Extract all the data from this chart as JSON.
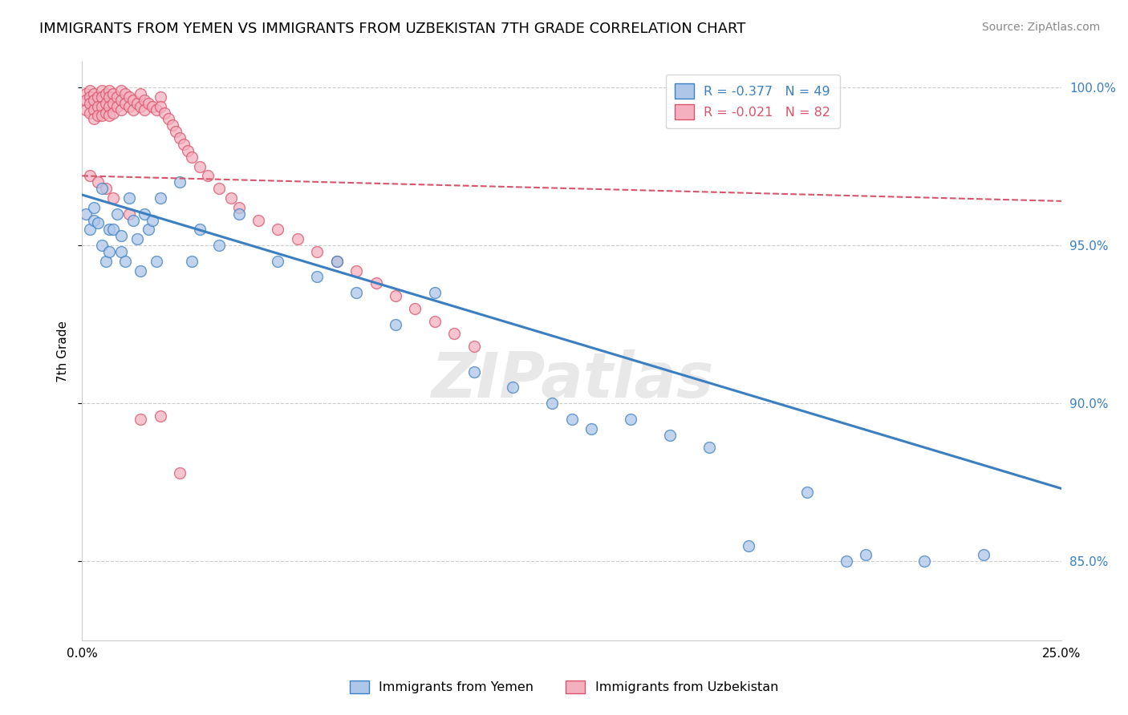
{
  "title": "IMMIGRANTS FROM YEMEN VS IMMIGRANTS FROM UZBEKISTAN 7TH GRADE CORRELATION CHART",
  "source": "Source: ZipAtlas.com",
  "ylabel": "7th Grade",
  "xlim": [
    0.0,
    0.25
  ],
  "ylim": [
    0.825,
    1.008
  ],
  "yticks": [
    0.85,
    0.9,
    0.95,
    1.0
  ],
  "ytick_labels": [
    "85.0%",
    "90.0%",
    "95.0%",
    "100.0%"
  ],
  "xticks": [
    0.0,
    0.05,
    0.1,
    0.15,
    0.2,
    0.25
  ],
  "xtick_labels": [
    "0.0%",
    "",
    "",
    "",
    "",
    "25.0%"
  ],
  "legend_labels": [
    "R = -0.377   N = 49",
    "R = -0.021   N = 82"
  ],
  "blue_scatter_x": [
    0.001,
    0.002,
    0.003,
    0.003,
    0.004,
    0.005,
    0.005,
    0.006,
    0.007,
    0.007,
    0.008,
    0.009,
    0.01,
    0.01,
    0.011,
    0.012,
    0.013,
    0.014,
    0.015,
    0.016,
    0.017,
    0.018,
    0.019,
    0.02,
    0.025,
    0.028,
    0.03,
    0.035,
    0.04,
    0.05,
    0.06,
    0.065,
    0.07,
    0.08,
    0.09,
    0.1,
    0.11,
    0.12,
    0.125,
    0.13,
    0.14,
    0.15,
    0.16,
    0.17,
    0.185,
    0.195,
    0.2,
    0.215,
    0.23
  ],
  "blue_scatter_y": [
    0.96,
    0.955,
    0.958,
    0.962,
    0.957,
    0.95,
    0.968,
    0.945,
    0.955,
    0.948,
    0.955,
    0.96,
    0.948,
    0.953,
    0.945,
    0.965,
    0.958,
    0.952,
    0.942,
    0.96,
    0.955,
    0.958,
    0.945,
    0.965,
    0.97,
    0.945,
    0.955,
    0.95,
    0.96,
    0.945,
    0.94,
    0.945,
    0.935,
    0.925,
    0.935,
    0.91,
    0.905,
    0.9,
    0.895,
    0.892,
    0.895,
    0.89,
    0.886,
    0.855,
    0.872,
    0.85,
    0.852,
    0.85,
    0.852
  ],
  "pink_scatter_x": [
    0.001,
    0.001,
    0.001,
    0.002,
    0.002,
    0.002,
    0.002,
    0.003,
    0.003,
    0.003,
    0.003,
    0.004,
    0.004,
    0.004,
    0.005,
    0.005,
    0.005,
    0.005,
    0.006,
    0.006,
    0.006,
    0.007,
    0.007,
    0.007,
    0.007,
    0.008,
    0.008,
    0.008,
    0.009,
    0.009,
    0.01,
    0.01,
    0.01,
    0.011,
    0.011,
    0.012,
    0.012,
    0.013,
    0.013,
    0.014,
    0.015,
    0.015,
    0.016,
    0.016,
    0.017,
    0.018,
    0.019,
    0.02,
    0.02,
    0.021,
    0.022,
    0.023,
    0.024,
    0.025,
    0.026,
    0.027,
    0.028,
    0.03,
    0.032,
    0.035,
    0.038,
    0.04,
    0.045,
    0.05,
    0.055,
    0.06,
    0.065,
    0.07,
    0.075,
    0.08,
    0.085,
    0.09,
    0.095,
    0.1,
    0.002,
    0.004,
    0.006,
    0.008,
    0.012,
    0.015,
    0.02,
    0.025
  ],
  "pink_scatter_y": [
    0.998,
    0.996,
    0.993,
    0.999,
    0.997,
    0.995,
    0.992,
    0.998,
    0.996,
    0.993,
    0.99,
    0.997,
    0.994,
    0.991,
    0.999,
    0.997,
    0.994,
    0.991,
    0.998,
    0.995,
    0.992,
    0.999,
    0.997,
    0.994,
    0.991,
    0.998,
    0.995,
    0.992,
    0.997,
    0.994,
    0.999,
    0.996,
    0.993,
    0.998,
    0.995,
    0.997,
    0.994,
    0.996,
    0.993,
    0.995,
    0.998,
    0.994,
    0.996,
    0.993,
    0.995,
    0.994,
    0.993,
    0.997,
    0.994,
    0.992,
    0.99,
    0.988,
    0.986,
    0.984,
    0.982,
    0.98,
    0.978,
    0.975,
    0.972,
    0.968,
    0.965,
    0.962,
    0.958,
    0.955,
    0.952,
    0.948,
    0.945,
    0.942,
    0.938,
    0.934,
    0.93,
    0.926,
    0.922,
    0.918,
    0.972,
    0.97,
    0.968,
    0.965,
    0.96,
    0.895,
    0.896,
    0.878
  ],
  "blue_line_x": [
    0.0,
    0.25
  ],
  "blue_line_y": [
    0.966,
    0.873
  ],
  "pink_line_x": [
    0.0,
    0.25
  ],
  "pink_line_y": [
    0.972,
    0.964
  ],
  "blue_color": "#3a7fc1",
  "pink_color": "#d9536a",
  "blue_fill_color": "#aec6e8",
  "pink_fill_color": "#f4b0be",
  "grid_color": "#cccccc",
  "background_color": "#ffffff",
  "title_fontsize": 13,
  "axis_label_fontsize": 11,
  "tick_fontsize": 11,
  "source_fontsize": 10,
  "ytick_color": "#3a7fc1",
  "watermark_text": "ZIPatlas",
  "bottom_legend": [
    "Immigrants from Yemen",
    "Immigrants from Uzbekistan"
  ]
}
